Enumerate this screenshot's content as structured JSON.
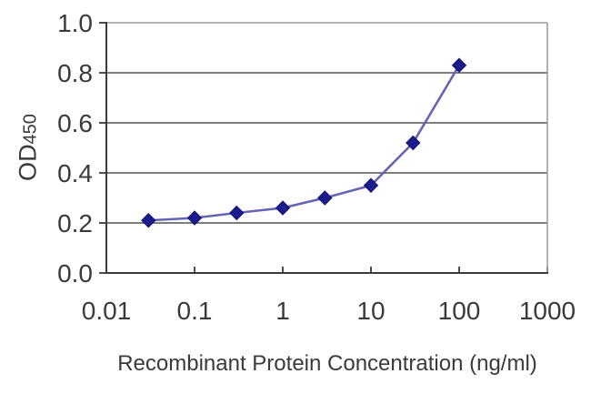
{
  "chart_data": {
    "type": "line",
    "title": "",
    "xlabel": "Recombinant Protein Concentration (ng/ml)",
    "ylabel": "OD450",
    "ylabel_main": "OD",
    "ylabel_sub": "450",
    "x_scale": "log",
    "xlim": [
      0.01,
      1000
    ],
    "ylim": [
      0.0,
      1.0
    ],
    "x_ticks": [
      0.01,
      0.1,
      1,
      10,
      100,
      1000
    ],
    "x_tick_labels": [
      "0.01",
      "0.1",
      "1",
      "10",
      "100",
      "1000"
    ],
    "y_ticks": [
      0.0,
      0.2,
      0.4,
      0.6,
      0.8,
      1.0
    ],
    "y_tick_labels": [
      "0.0",
      "0.2",
      "0.4",
      "0.6",
      "0.8",
      "1.0"
    ],
    "grid": "horizontal-only",
    "legend": false,
    "marker": "diamond",
    "x": [
      0.03,
      0.1,
      0.3,
      1,
      3,
      10,
      30,
      100
    ],
    "y": [
      0.21,
      0.22,
      0.24,
      0.26,
      0.3,
      0.35,
      0.52,
      0.83
    ],
    "colors": {
      "background": "#ffffff",
      "line": "#6464b4",
      "marker": "#1b1b8e",
      "marker_edge": "#12126e",
      "grid": "#525252",
      "axis": "#3a3a3a",
      "border": "#999999",
      "text": "#3a3a3a"
    }
  }
}
